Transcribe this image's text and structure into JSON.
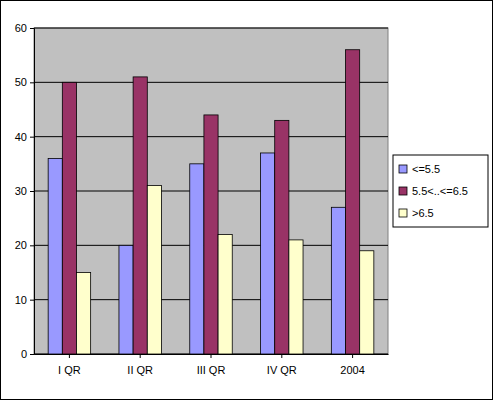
{
  "chart_data": {
    "type": "bar",
    "categories": [
      "I QR",
      "II QR",
      "III QR",
      "IV QR",
      "2004"
    ],
    "series": [
      {
        "name": "<=5.5",
        "color": "#9999ff",
        "values": [
          36,
          20,
          35,
          37,
          27
        ]
      },
      {
        "name": "5.5<..<=6.5",
        "color": "#993366",
        "values": [
          50,
          51,
          44,
          43,
          56
        ]
      },
      {
        "name": ">6.5",
        "color": "#ffffcc",
        "values": [
          15,
          31,
          22,
          21,
          19
        ]
      }
    ],
    "ylim": [
      0,
      60
    ],
    "yticks": [
      0,
      10,
      20,
      30,
      40,
      50,
      60
    ],
    "grid": true,
    "legend": "right"
  }
}
